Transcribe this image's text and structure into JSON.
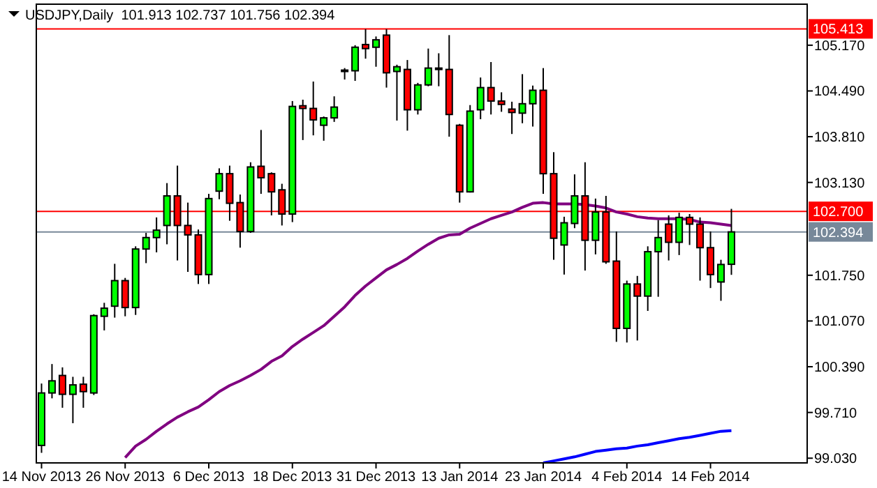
{
  "chart_data": {
    "type": "candlestick",
    "title": "USDJPY,Daily  101.913 102.737 101.756 102.394",
    "categories": [
      "14 Nov 2013",
      null,
      null,
      null,
      null,
      null,
      null,
      null,
      "26 Nov 2013",
      null,
      null,
      null,
      null,
      null,
      null,
      null,
      "6 Dec 2013",
      null,
      null,
      null,
      null,
      null,
      null,
      null,
      "18 Dec 2013",
      null,
      null,
      null,
      null,
      null,
      null,
      null,
      "31 Dec 2013",
      null,
      null,
      null,
      null,
      null,
      null,
      null,
      "13 Jan 2014",
      null,
      null,
      null,
      null,
      null,
      null,
      null,
      "23 Jan 2014",
      null,
      null,
      null,
      null,
      null,
      null,
      null,
      "4 Feb 2014",
      null,
      null,
      null,
      null,
      null,
      null,
      null,
      "14 Feb 2014",
      null,
      null
    ],
    "colors": [
      "#00ff00",
      "#00ff00",
      "#ff0000",
      "#00ff00",
      "#ff0000",
      "#00ff00",
      "#00ff00",
      "#00ff00",
      "#ff0000",
      "#00ff00",
      "#00ff00",
      "#00ff00",
      "#00ff00",
      "#ff0000",
      "#ff0000",
      "#ff0000",
      "#00ff00",
      "#00ff00",
      "#ff0000",
      "#ff0000",
      "#00ff00",
      "#ff0000",
      "#ff0000",
      "#ff0000",
      "#00ff00",
      "#ff0000",
      "#ff0000",
      "#00ff00",
      "#00ff00",
      "#00ff00",
      "#00ff00",
      "#ff0000",
      "#00ff00",
      "#ff0000",
      "#00ff00",
      "#ff0000",
      "#00ff00",
      "#00ff00",
      "#00ff00",
      "#ff0000",
      "#ff0000",
      "#00ff00",
      "#00ff00",
      "#ff0000",
      "#ff0000",
      "#ff0000",
      "#00ff00",
      "#00ff00",
      "#ff0000",
      "#ff0000",
      "#00ff00",
      "#00ff00",
      "#ff0000",
      "#00ff00",
      "#ff0000",
      "#ff0000",
      "#00ff00",
      "#ff0000",
      "#00ff00",
      "#00ff00",
      "#ff0000",
      "#00ff00",
      "#ff0000",
      "#ff0000",
      "#ff0000",
      "#00ff00",
      "#00ff00"
    ],
    "ohlc": [
      [
        99.22,
        100.14,
        99.11,
        100.0
      ],
      [
        100.0,
        100.43,
        99.92,
        100.18
      ],
      [
        100.26,
        100.38,
        99.78,
        99.98
      ],
      [
        99.98,
        100.24,
        99.55,
        100.12
      ],
      [
        100.13,
        100.24,
        99.78,
        100.02
      ],
      [
        100.0,
        101.17,
        99.97,
        101.15
      ],
      [
        101.14,
        101.34,
        100.93,
        101.26
      ],
      [
        101.29,
        101.92,
        101.12,
        101.67
      ],
      [
        101.67,
        101.71,
        101.14,
        101.27
      ],
      [
        101.27,
        102.18,
        101.16,
        102.14
      ],
      [
        102.14,
        102.38,
        101.93,
        102.31
      ],
      [
        102.31,
        102.61,
        102.09,
        102.42
      ],
      [
        102.49,
        103.12,
        102.21,
        102.93
      ],
      [
        102.93,
        103.38,
        101.97,
        102.49
      ],
      [
        102.49,
        102.83,
        101.8,
        102.35
      ],
      [
        102.35,
        102.43,
        101.62,
        101.76
      ],
      [
        101.76,
        102.96,
        101.62,
        102.89
      ],
      [
        103.0,
        103.34,
        102.88,
        103.26
      ],
      [
        103.26,
        103.38,
        102.56,
        102.82
      ],
      [
        102.83,
        102.95,
        102.16,
        102.4
      ],
      [
        102.4,
        103.43,
        102.38,
        103.36
      ],
      [
        103.37,
        103.91,
        102.96,
        103.2
      ],
      [
        103.26,
        103.28,
        102.64,
        102.99
      ],
      [
        103.02,
        103.11,
        102.49,
        102.66
      ],
      [
        102.66,
        104.34,
        102.54,
        104.26
      ],
      [
        104.27,
        104.36,
        103.76,
        104.23
      ],
      [
        104.23,
        104.63,
        103.83,
        104.06
      ],
      [
        103.98,
        104.11,
        103.75,
        104.09
      ],
      [
        104.09,
        104.41,
        104.03,
        104.25
      ],
      [
        104.78,
        104.83,
        104.66,
        104.8
      ],
      [
        104.79,
        105.17,
        104.64,
        105.14
      ],
      [
        105.18,
        105.41,
        104.97,
        105.12
      ],
      [
        105.14,
        105.3,
        104.85,
        105.25
      ],
      [
        105.32,
        105.41,
        104.54,
        104.76
      ],
      [
        104.78,
        104.88,
        104.05,
        104.85
      ],
      [
        104.81,
        104.95,
        103.9,
        104.21
      ],
      [
        104.21,
        104.61,
        104.14,
        104.58
      ],
      [
        104.58,
        105.12,
        104.56,
        104.83
      ],
      [
        104.81,
        105.05,
        104.56,
        104.83
      ],
      [
        104.81,
        105.32,
        103.81,
        104.14
      ],
      [
        103.98,
        104.0,
        102.83,
        102.99
      ],
      [
        102.99,
        104.28,
        102.98,
        104.19
      ],
      [
        104.21,
        104.69,
        104.07,
        104.54
      ],
      [
        104.54,
        104.92,
        104.14,
        104.34
      ],
      [
        104.34,
        104.47,
        104.18,
        104.29
      ],
      [
        104.22,
        104.33,
        103.85,
        104.17
      ],
      [
        104.16,
        104.74,
        104.01,
        104.3
      ],
      [
        104.3,
        104.57,
        103.96,
        104.5
      ],
      [
        104.5,
        104.83,
        102.96,
        103.26
      ],
      [
        103.26,
        103.58,
        101.98,
        102.3
      ],
      [
        102.2,
        102.62,
        101.76,
        102.53
      ],
      [
        102.52,
        103.25,
        102.45,
        102.93
      ],
      [
        102.93,
        103.43,
        101.82,
        102.27
      ],
      [
        102.27,
        102.89,
        102.06,
        102.69
      ],
      [
        102.69,
        102.93,
        101.92,
        101.95
      ],
      [
        101.96,
        102.4,
        100.76,
        100.96
      ],
      [
        100.96,
        101.67,
        100.75,
        101.62
      ],
      [
        101.62,
        101.74,
        100.78,
        101.44
      ],
      [
        101.44,
        102.18,
        101.22,
        102.1
      ],
      [
        102.1,
        102.57,
        101.43,
        102.31
      ],
      [
        102.51,
        102.64,
        101.97,
        102.24
      ],
      [
        102.24,
        102.68,
        102.05,
        102.61
      ],
      [
        102.61,
        102.66,
        102.2,
        102.51
      ],
      [
        102.51,
        102.61,
        101.67,
        102.16
      ],
      [
        102.16,
        102.4,
        101.56,
        101.76
      ],
      [
        101.65,
        101.98,
        101.37,
        101.91
      ],
      [
        101.913,
        102.737,
        101.756,
        102.394
      ]
    ],
    "series": [
      {
        "type": "line",
        "color": "#800080",
        "values": [
          null,
          null,
          null,
          null,
          null,
          null,
          null,
          null,
          99.04,
          99.21,
          99.31,
          99.43,
          99.54,
          99.64,
          99.72,
          99.79,
          99.9,
          100.02,
          100.11,
          100.18,
          100.26,
          100.35,
          100.47,
          100.55,
          100.69,
          100.8,
          100.9,
          101.0,
          101.14,
          101.28,
          101.45,
          101.59,
          101.71,
          101.83,
          101.91,
          102.0,
          102.11,
          102.21,
          102.3,
          102.35,
          102.36,
          102.45,
          102.52,
          102.59,
          102.64,
          102.69,
          102.76,
          102.82,
          102.83,
          102.81,
          102.81,
          102.81,
          102.8,
          102.78,
          102.75,
          102.69,
          102.66,
          102.62,
          102.6,
          102.59,
          102.59,
          102.59,
          102.58,
          102.54,
          102.53,
          102.51,
          102.49
        ]
      },
      {
        "type": "line",
        "color": "#0000ff",
        "values": [
          null,
          null,
          null,
          null,
          null,
          null,
          null,
          null,
          null,
          null,
          null,
          null,
          null,
          null,
          null,
          null,
          null,
          null,
          null,
          null,
          null,
          null,
          null,
          null,
          null,
          null,
          null,
          null,
          null,
          null,
          null,
          null,
          null,
          null,
          null,
          null,
          null,
          null,
          null,
          null,
          null,
          null,
          null,
          null,
          null,
          null,
          null,
          null,
          98.96,
          98.99,
          99.02,
          99.05,
          99.09,
          99.13,
          99.15,
          99.17,
          99.18,
          99.21,
          99.23,
          99.26,
          99.29,
          99.32,
          99.34,
          99.37,
          99.4,
          99.43,
          99.44
        ]
      }
    ],
    "ylim": [
      98.96,
      105.78
    ],
    "yticks": [
      {
        "value": 105.17,
        "label": "105.170"
      },
      {
        "value": 104.49,
        "label": "104.490"
      },
      {
        "value": 103.81,
        "label": "103.810"
      },
      {
        "value": 103.13,
        "label": "103.130"
      },
      {
        "value": 101.75,
        "label": "101.750"
      },
      {
        "value": 101.07,
        "label": "101.070"
      },
      {
        "value": 100.39,
        "label": "100.390"
      },
      {
        "value": 99.71,
        "label": "99.710"
      },
      {
        "value": 99.03,
        "label": "99.030"
      }
    ],
    "ref_lines": [
      {
        "axis": "y",
        "value": 105.413,
        "label": "105.413",
        "color": "#ff0000"
      },
      {
        "axis": "y",
        "value": 102.7,
        "label": "102.700",
        "color": "#ff0000"
      },
      {
        "axis": "y",
        "value": 102.394,
        "label": "102.394",
        "color": "#778899"
      }
    ],
    "grid": false
  }
}
